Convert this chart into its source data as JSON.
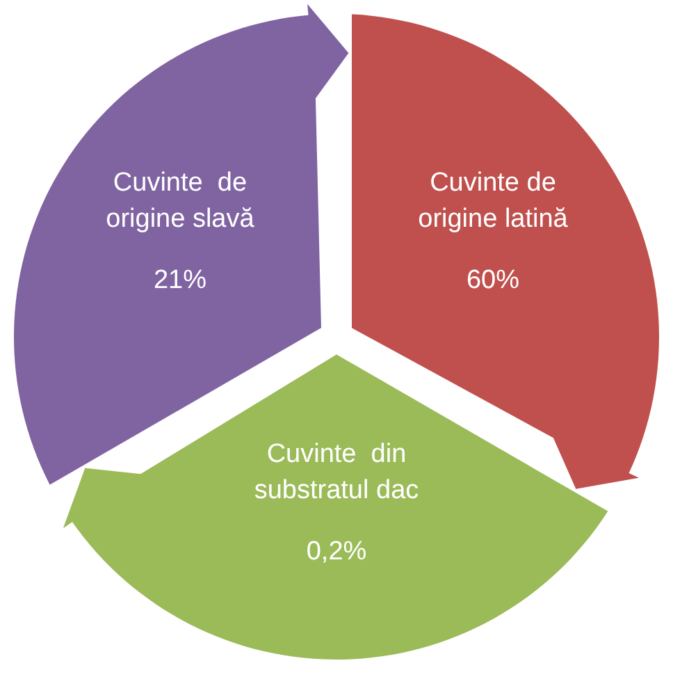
{
  "chart_data": {
    "type": "other",
    "categories": [
      "Cuvinte de origine latină",
      "Cuvinte  din substratul dac",
      "Cuvinte  de origine slavă"
    ],
    "values": [
      60,
      0.2,
      21
    ],
    "value_labels": [
      "60%",
      "0,2%",
      "21%"
    ],
    "colors": [
      "#c0504d",
      "#9bbb59",
      "#8064a2"
    ]
  }
}
